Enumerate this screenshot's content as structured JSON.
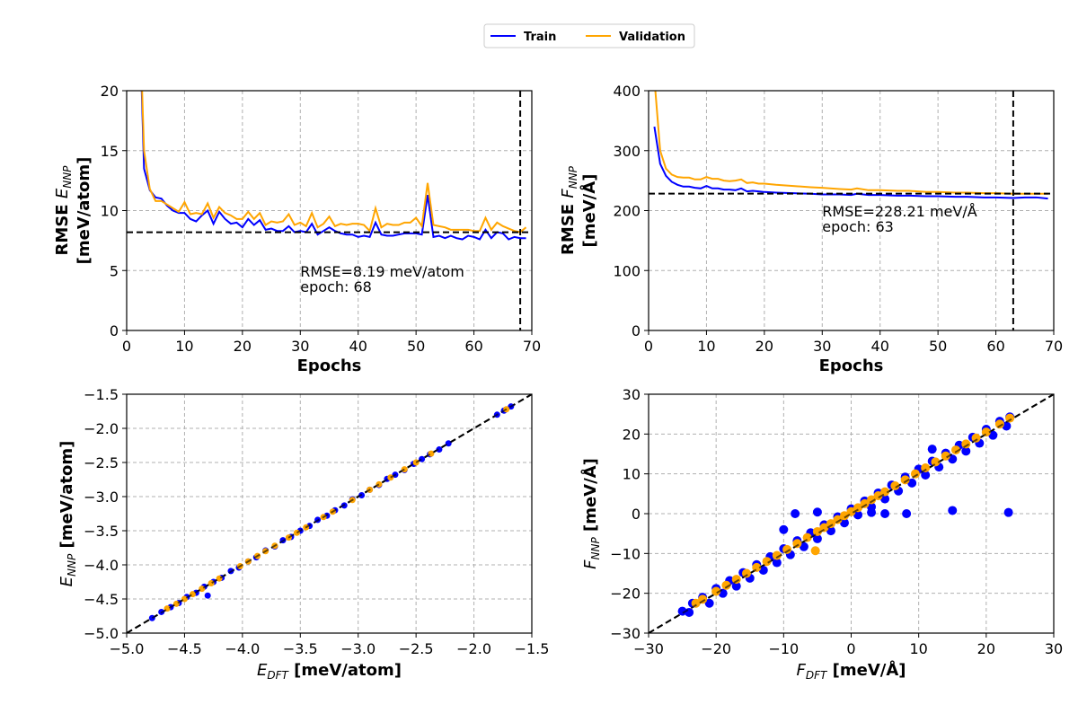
{
  "legend": {
    "placement": "top-center",
    "items": [
      {
        "label": "Train",
        "color": "#0000ff"
      },
      {
        "label": "Validation",
        "color": "#ffa500"
      }
    ]
  },
  "chart_data": [
    {
      "type": "line",
      "xlabel": "Epochs",
      "ylabel_prefix": "RMSE ",
      "ylabel_sym": "E",
      "ylabel_sub": "NNP",
      "ylabel_unit": "[meV/atom]",
      "xlim": [
        0,
        70
      ],
      "ylim": [
        0,
        20
      ],
      "xticks": [
        "0",
        "10",
        "20",
        "30",
        "40",
        "50",
        "60",
        "70"
      ],
      "yticks": [
        "0",
        "5",
        "10",
        "15",
        "20"
      ],
      "grid": true,
      "x": [
        2,
        3,
        4,
        5,
        6,
        7,
        8,
        9,
        10,
        11,
        12,
        13,
        14,
        15,
        16,
        17,
        18,
        19,
        20,
        21,
        22,
        23,
        24,
        25,
        26,
        27,
        28,
        29,
        30,
        31,
        32,
        33,
        34,
        35,
        36,
        37,
        38,
        39,
        40,
        41,
        42,
        43,
        44,
        45,
        46,
        47,
        48,
        49,
        50,
        51,
        52,
        53,
        54,
        55,
        56,
        57,
        58,
        59,
        60,
        61,
        62,
        63,
        64,
        65,
        66,
        67,
        68,
        69
      ],
      "series": [
        {
          "name": "Train",
          "color": "#0000ff",
          "values": [
            30,
            13.5,
            11.7,
            11.1,
            11.0,
            10.4,
            10.0,
            9.8,
            9.8,
            9.3,
            9.1,
            9.6,
            10.0,
            8.9,
            9.9,
            9.3,
            8.9,
            9.0,
            8.6,
            9.3,
            8.8,
            9.2,
            8.4,
            8.5,
            8.3,
            8.3,
            8.7,
            8.2,
            8.3,
            8.2,
            8.9,
            8.0,
            8.3,
            8.6,
            8.3,
            8.1,
            8.0,
            8.0,
            7.8,
            7.9,
            7.8,
            9.0,
            8.0,
            7.9,
            7.9,
            8.0,
            8.1,
            8.1,
            8.1,
            8.0,
            11.3,
            7.8,
            7.9,
            7.7,
            7.9,
            7.7,
            7.6,
            7.9,
            7.8,
            7.6,
            8.4,
            7.7,
            8.2,
            8.1,
            7.6,
            7.8,
            7.7,
            7.7
          ]
        },
        {
          "name": "Validation",
          "color": "#ffa500",
          "values": [
            30,
            15.0,
            11.8,
            10.8,
            10.8,
            10.5,
            10.2,
            9.9,
            10.7,
            9.7,
            9.8,
            9.7,
            10.6,
            9.4,
            10.3,
            9.8,
            9.6,
            9.3,
            9.3,
            9.9,
            9.3,
            9.8,
            8.8,
            9.1,
            9.0,
            9.1,
            9.7,
            8.8,
            9.0,
            8.7,
            9.8,
            8.6,
            8.9,
            9.5,
            8.7,
            8.9,
            8.8,
            8.9,
            8.9,
            8.8,
            8.3,
            10.2,
            8.6,
            8.9,
            8.8,
            8.8,
            9.0,
            9.0,
            9.4,
            8.7,
            12.3,
            8.8,
            8.7,
            8.6,
            8.4,
            8.4,
            8.4,
            8.4,
            8.3,
            8.3,
            9.4,
            8.4,
            9.0,
            8.7,
            8.5,
            8.3,
            8.2,
            8.6
          ]
        }
      ],
      "best": {
        "value": 8.19,
        "epoch": 68,
        "text1": "RMSE=8.19 meV/atom",
        "text2": "epoch: 68"
      }
    },
    {
      "type": "line",
      "xlabel": "Epochs",
      "ylabel_prefix": "RMSE ",
      "ylabel_sym": "F",
      "ylabel_sub": "NNP",
      "ylabel_unit": "[meV/Å]",
      "xlim": [
        0,
        70
      ],
      "ylim": [
        0,
        400
      ],
      "xticks": [
        "0",
        "10",
        "20",
        "30",
        "40",
        "50",
        "60",
        "70"
      ],
      "yticks": [
        "0",
        "100",
        "200",
        "300",
        "400"
      ],
      "grid": true,
      "x": [
        1,
        2,
        3,
        4,
        5,
        6,
        7,
        8,
        9,
        10,
        11,
        12,
        13,
        14,
        15,
        16,
        17,
        18,
        19,
        20,
        22,
        25,
        28,
        30,
        33,
        35,
        36,
        38,
        40,
        43,
        45,
        48,
        50,
        53,
        55,
        58,
        60,
        63,
        65,
        67,
        69
      ],
      "series": [
        {
          "name": "Train",
          "color": "#0000ff",
          "values": [
            340,
            278,
            258,
            248,
            243,
            240,
            240,
            238,
            237,
            241,
            237,
            237,
            235,
            235,
            234,
            237,
            232,
            233,
            232,
            231,
            230,
            229,
            228,
            227,
            227,
            226,
            228,
            226,
            226,
            225,
            225,
            224,
            224,
            223,
            223,
            222,
            222,
            221,
            222,
            222,
            220
          ]
        },
        {
          "name": "Validation",
          "color": "#ffa500",
          "values": [
            420,
            300,
            270,
            260,
            256,
            255,
            255,
            252,
            252,
            256,
            253,
            253,
            250,
            249,
            250,
            252,
            246,
            247,
            245,
            245,
            243,
            241,
            239,
            238,
            236,
            235,
            237,
            234,
            234,
            233,
            233,
            231,
            231,
            230,
            230,
            229,
            229,
            228,
            228,
            228,
            228
          ]
        }
      ],
      "best": {
        "value": 228.21,
        "epoch": 63,
        "text1": "RMSE=228.21 meV/Å",
        "text2": "epoch: 63"
      }
    },
    {
      "type": "scatter",
      "xlabel_sym": "E",
      "xlabel_sub": "DFT",
      "xlabel_unit": " [meV/atom]",
      "ylabel_sym": "E",
      "ylabel_sub": "NNP",
      "ylabel_unit": " [meV/atom]",
      "xlim": [
        -5,
        -1.5
      ],
      "ylim": [
        -5,
        -1.5
      ],
      "xticks": [
        "−5.0",
        "−4.5",
        "−4.0",
        "−3.5",
        "−3.0",
        "−2.5",
        "−2.0",
        "−1.5"
      ],
      "yticks": [
        "−5.0",
        "−4.5",
        "−4.0",
        "−3.5",
        "−3.0",
        "−2.5",
        "−2.0",
        "−1.5"
      ],
      "grid": true,
      "diagonal": true,
      "series": [
        {
          "name": "Train",
          "color": "#0000ff",
          "points": [
            [
              -4.78,
              -4.78
            ],
            [
              -4.7,
              -4.69
            ],
            [
              -4.62,
              -4.62
            ],
            [
              -4.55,
              -4.56
            ],
            [
              -4.48,
              -4.47
            ],
            [
              -4.4,
              -4.41
            ],
            [
              -4.33,
              -4.32
            ],
            [
              -4.3,
              -4.45
            ],
            [
              -4.25,
              -4.25
            ],
            [
              -4.18,
              -4.19
            ],
            [
              -4.1,
              -4.09
            ],
            [
              -4.03,
              -4.04
            ],
            [
              -3.95,
              -3.95
            ],
            [
              -3.88,
              -3.89
            ],
            [
              -3.8,
              -3.79
            ],
            [
              -3.72,
              -3.73
            ],
            [
              -3.65,
              -3.64
            ],
            [
              -3.58,
              -3.59
            ],
            [
              -3.5,
              -3.5
            ],
            [
              -3.42,
              -3.43
            ],
            [
              -3.35,
              -3.34
            ],
            [
              -3.27,
              -3.28
            ],
            [
              -3.2,
              -3.2
            ],
            [
              -3.12,
              -3.13
            ],
            [
              -3.05,
              -3.04
            ],
            [
              -2.97,
              -2.98
            ],
            [
              -2.9,
              -2.9
            ],
            [
              -2.82,
              -2.83
            ],
            [
              -2.75,
              -2.74
            ],
            [
              -2.68,
              -2.68
            ],
            [
              -2.6,
              -2.61
            ],
            [
              -2.52,
              -2.52
            ],
            [
              -2.45,
              -2.45
            ],
            [
              -2.38,
              -2.38
            ],
            [
              -2.3,
              -2.31
            ],
            [
              -2.22,
              -2.22
            ],
            [
              -1.8,
              -1.8
            ],
            [
              -1.74,
              -1.74
            ],
            [
              -1.68,
              -1.68
            ]
          ]
        },
        {
          "name": "Validation",
          "color": "#ffa500",
          "points": [
            [
              -4.65,
              -4.64
            ],
            [
              -4.57,
              -4.57
            ],
            [
              -4.5,
              -4.5
            ],
            [
              -4.43,
              -4.43
            ],
            [
              -4.35,
              -4.35
            ],
            [
              -4.27,
              -4.27
            ],
            [
              -4.2,
              -4.2
            ],
            [
              -4.02,
              -4.02
            ],
            [
              -3.95,
              -3.95
            ],
            [
              -3.87,
              -3.87
            ],
            [
              -3.8,
              -3.8
            ],
            [
              -3.72,
              -3.72
            ],
            [
              -3.6,
              -3.6
            ],
            [
              -3.53,
              -3.53
            ],
            [
              -3.45,
              -3.45
            ],
            [
              -3.3,
              -3.3
            ],
            [
              -3.22,
              -3.22
            ],
            [
              -3.05,
              -3.05
            ],
            [
              -2.9,
              -2.9
            ],
            [
              -2.82,
              -2.82
            ],
            [
              -2.72,
              -2.72
            ],
            [
              -2.6,
              -2.6
            ],
            [
              -2.5,
              -2.5
            ],
            [
              -2.37,
              -2.37
            ],
            [
              -1.72,
              -1.72
            ]
          ]
        }
      ]
    },
    {
      "type": "scatter",
      "xlabel_sym": "F",
      "xlabel_sub": "DFT",
      "xlabel_unit": " [meV/Å]",
      "ylabel_sym": "F",
      "ylabel_sub": "NNP",
      "ylabel_unit": " [meV/Å]",
      "xlim": [
        -30,
        30
      ],
      "ylim": [
        -30,
        30
      ],
      "xticks": [
        "−30",
        "−20",
        "−10",
        "0",
        "10",
        "20",
        "30"
      ],
      "yticks": [
        "−30",
        "−20",
        "−10",
        "0",
        "10",
        "20",
        "30"
      ],
      "grid": true,
      "diagonal": true,
      "series": [
        {
          "name": "Train",
          "color": "#0000ff",
          "points": [
            [
              -25,
              -24.5
            ],
            [
              -24,
              -24.8
            ],
            [
              -23.5,
              -22.5
            ],
            [
              -22,
              -21
            ],
            [
              -21,
              -22.5
            ],
            [
              -20,
              -18.8
            ],
            [
              -19,
              -20
            ],
            [
              -18,
              -16.8
            ],
            [
              -17,
              -18.2
            ],
            [
              -16,
              -14.8
            ],
            [
              -15,
              -16.2
            ],
            [
              -14,
              -12.8
            ],
            [
              -13,
              -14.2
            ],
            [
              -12,
              -10.8
            ],
            [
              -11,
              -12.3
            ],
            [
              -10,
              -8.8
            ],
            [
              -9,
              -10.3
            ],
            [
              -8,
              -6.8
            ],
            [
              -7,
              -8.3
            ],
            [
              -6,
              -4.8
            ],
            [
              -5,
              -6.3
            ],
            [
              -4,
              -2.8
            ],
            [
              -3,
              -4.3
            ],
            [
              -2,
              -0.8
            ],
            [
              -1,
              -2.3
            ],
            [
              0,
              1.2
            ],
            [
              1,
              -0.3
            ],
            [
              2,
              3.2
            ],
            [
              3,
              1.7
            ],
            [
              4,
              5.2
            ],
            [
              5,
              3.7
            ],
            [
              6,
              7.2
            ],
            [
              7,
              5.7
            ],
            [
              8,
              9.2
            ],
            [
              9,
              7.7
            ],
            [
              10,
              11.2
            ],
            [
              11,
              9.7
            ],
            [
              12,
              13.2
            ],
            [
              13,
              11.7
            ],
            [
              14,
              15.2
            ],
            [
              15,
              13.7
            ],
            [
              16,
              17.2
            ],
            [
              17,
              15.7
            ],
            [
              18,
              19.2
            ],
            [
              19,
              17.7
            ],
            [
              20,
              21.2
            ],
            [
              21,
              19.7
            ],
            [
              22,
              23.2
            ],
            [
              23,
              22
            ],
            [
              23.5,
              24.3
            ],
            [
              -8.3,
              0
            ],
            [
              -5,
              0.4
            ],
            [
              3,
              0.3
            ],
            [
              5,
              0
            ],
            [
              8.2,
              0
            ],
            [
              15,
              0.8
            ],
            [
              23.3,
              0.3
            ],
            [
              12,
              16.2
            ],
            [
              -10,
              -4
            ]
          ]
        },
        {
          "name": "Validation",
          "color": "#ffa500",
          "points": [
            [
              -23,
              -22.5
            ],
            [
              -22,
              -21.5
            ],
            [
              -20,
              -19.5
            ],
            [
              -18.5,
              -18
            ],
            [
              -17,
              -16.5
            ],
            [
              -15.5,
              -15
            ],
            [
              -14,
              -13.5
            ],
            [
              -12.5,
              -12
            ],
            [
              -11,
              -10.5
            ],
            [
              -9.5,
              -9
            ],
            [
              -8,
              -7.5
            ],
            [
              -6.5,
              -6
            ],
            [
              -5,
              -4.5
            ],
            [
              -4,
              -3.5
            ],
            [
              -3,
              -2.5
            ],
            [
              -2,
              -1.5
            ],
            [
              -1,
              -0.5
            ],
            [
              0,
              0.5
            ],
            [
              1,
              1.5
            ],
            [
              2,
              2.5
            ],
            [
              3,
              3.5
            ],
            [
              4,
              4.5
            ],
            [
              5,
              5.5
            ],
            [
              6.5,
              7
            ],
            [
              8,
              8.5
            ],
            [
              9.5,
              10
            ],
            [
              11,
              11.5
            ],
            [
              12.5,
              13
            ],
            [
              14,
              14.5
            ],
            [
              15.5,
              16
            ],
            [
              17,
              17.5
            ],
            [
              18.5,
              19
            ],
            [
              20,
              20.5
            ],
            [
              22,
              22.5
            ],
            [
              23.5,
              24
            ],
            [
              -5.3,
              -9.3
            ]
          ]
        }
      ]
    }
  ]
}
